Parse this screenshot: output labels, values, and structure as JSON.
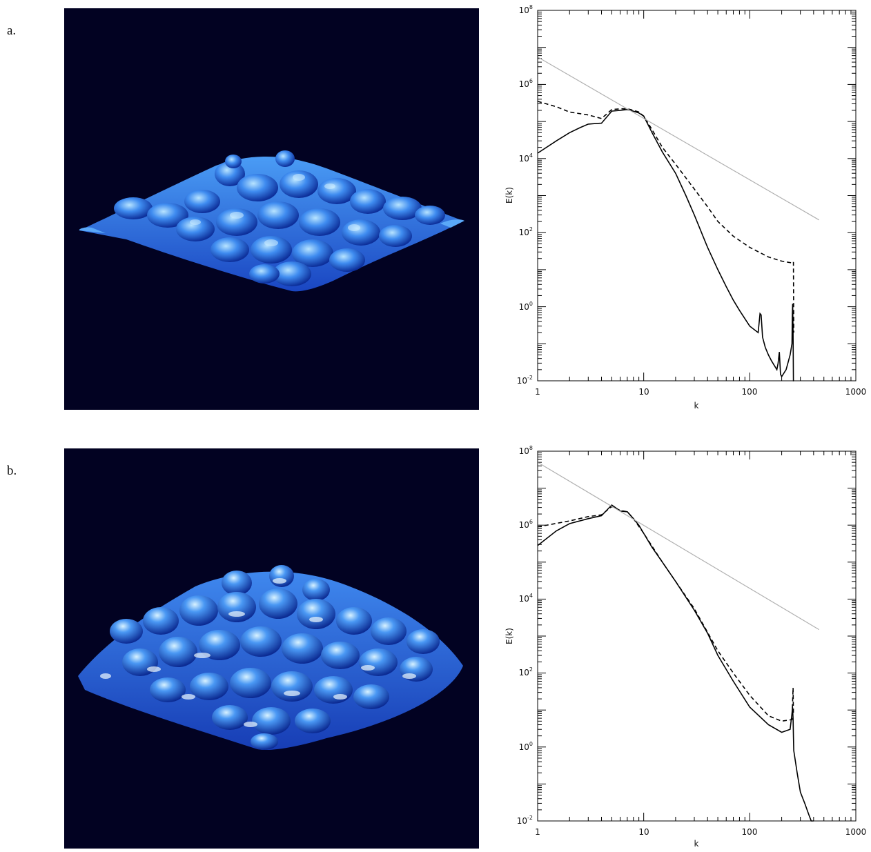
{
  "panels": [
    {
      "label": "a.",
      "image": "isosurface-render"
    },
    {
      "label": "b.",
      "image": "isosurface-render"
    }
  ],
  "chart_data": [
    {
      "type": "line",
      "xlabel": "k",
      "ylabel": "E(k)",
      "xscale": "log",
      "yscale": "log",
      "xlim": [
        1,
        1000
      ],
      "ylim": [
        0.01,
        100000000
      ],
      "xticks": [
        "1",
        "10",
        "100",
        "1000"
      ],
      "yticks": [
        {
          "base": "10",
          "exp": "-2"
        },
        {
          "base": "10",
          "exp": "0"
        },
        {
          "base": "10",
          "exp": "2"
        },
        {
          "base": "10",
          "exp": "4"
        },
        {
          "base": "10",
          "exp": "6"
        },
        {
          "base": "10",
          "exp": "8"
        }
      ],
      "grid": false,
      "series": [
        {
          "style": "solid",
          "color": "#000000",
          "x": [
            1,
            1.5,
            2,
            2.5,
            3,
            3.5,
            4,
            5,
            6,
            7,
            8,
            9,
            10,
            12,
            15,
            20,
            25,
            30,
            40,
            50,
            60,
            70,
            80,
            100,
            120,
            125,
            128,
            132,
            140,
            150,
            160,
            180,
            185,
            190,
            195,
            200,
            220,
            240,
            250,
            252,
            254,
            256,
            258,
            260
          ],
          "y": [
            14000,
            30000,
            50000,
            68000,
            85000,
            88000,
            90000,
            190000,
            200000,
            210000,
            190000,
            170000,
            140000,
            50000,
            15000,
            4000,
            1000,
            300,
            40,
            10,
            3.5,
            1.5,
            0.8,
            0.3,
            0.2,
            0.65,
            0.6,
            0.15,
            0.08,
            0.05,
            0.035,
            0.02,
            0.03,
            0.06,
            0.015,
            0.013,
            0.02,
            0.05,
            0.1,
            0.6,
            1.2,
            0.2,
            0.01,
            0.005
          ]
        },
        {
          "style": "dashed",
          "color": "#000000",
          "x": [
            1,
            1.5,
            2,
            3,
            4,
            5,
            6,
            7,
            8,
            9,
            10,
            12,
            15,
            20,
            30,
            40,
            50,
            70,
            100,
            150,
            200,
            256,
            258,
            260
          ],
          "y": [
            350000,
            250000,
            180000,
            150000,
            120000,
            210000,
            220000,
            220000,
            200000,
            180000,
            140000,
            60000,
            20000,
            7000,
            1500,
            500,
            200,
            80,
            40,
            22,
            17,
            15,
            16,
            0.2
          ]
        },
        {
          "style": "solid",
          "color": "#b0b0b0",
          "x": [
            1,
            450
          ],
          "y": [
            5500000,
            220
          ]
        }
      ]
    },
    {
      "type": "line",
      "xlabel": "k",
      "ylabel": "E(k)",
      "xscale": "log",
      "yscale": "log",
      "xlim": [
        1,
        1000
      ],
      "ylim": [
        0.01,
        100000000
      ],
      "xticks": [
        "1",
        "10",
        "100",
        "1000"
      ],
      "yticks": [
        {
          "base": "10",
          "exp": "-2"
        },
        {
          "base": "10",
          "exp": "0"
        },
        {
          "base": "10",
          "exp": "2"
        },
        {
          "base": "10",
          "exp": "4"
        },
        {
          "base": "10",
          "exp": "6"
        },
        {
          "base": "10",
          "exp": "8"
        }
      ],
      "grid": false,
      "series": [
        {
          "style": "solid",
          "color": "#000000",
          "x": [
            1,
            1.5,
            2,
            3,
            4,
            5,
            6,
            7,
            8,
            9,
            10,
            12,
            15,
            20,
            30,
            40,
            50,
            70,
            100,
            150,
            200,
            240,
            250,
            253,
            256,
            258,
            260,
            280,
            300,
            330,
            360,
            380,
            400
          ],
          "y": [
            280000,
            700000,
            1100000,
            1500000,
            1800000,
            3500000,
            2400000,
            2300000,
            1500000,
            1000000,
            600000,
            250000,
            100000,
            30000,
            5000,
            1200,
            300,
            60,
            12,
            4,
            2.5,
            3,
            8,
            12,
            6,
            2,
            0.8,
            0.2,
            0.06,
            0.03,
            0.015,
            0.008,
            0.002
          ]
        },
        {
          "style": "dashed",
          "color": "#000000",
          "x": [
            1,
            2,
            3,
            4,
            5,
            6,
            7,
            8,
            10,
            15,
            20,
            30,
            50,
            70,
            100,
            150,
            200,
            250,
            256,
            258
          ],
          "y": [
            900000,
            1300000,
            1700000,
            1900000,
            3200000,
            2500000,
            2300000,
            1500000,
            600000,
            100000,
            30000,
            5500,
            400,
            100,
            25,
            7,
            5,
            5.5,
            40,
            8
          ]
        },
        {
          "style": "solid",
          "color": "#b0b0b0",
          "x": [
            1,
            450
          ],
          "y": [
            50000000,
            1500
          ]
        }
      ]
    }
  ]
}
